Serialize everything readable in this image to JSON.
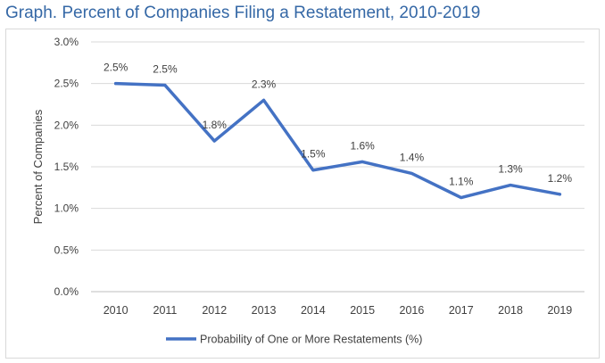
{
  "title": "Graph. Percent of Companies Filing a Restatement, 2010-2019",
  "chart_data": {
    "type": "line",
    "title": "Graph. Percent of Companies Filing a Restatement, 2010-2019",
    "xlabel": "",
    "ylabel": "Percent of Companies",
    "categories": [
      "2010",
      "2011",
      "2012",
      "2013",
      "2014",
      "2015",
      "2016",
      "2017",
      "2018",
      "2019"
    ],
    "series": [
      {
        "name": "Probability of One or More Restatements (%)",
        "values": [
          2.5,
          2.48,
          1.81,
          2.3,
          1.46,
          1.56,
          1.42,
          1.13,
          1.28,
          1.17
        ],
        "data_labels": [
          "2.5%",
          "2.5%",
          "1.8%",
          "2.3%",
          "1.5%",
          "1.6%",
          "1.4%",
          "1.1%",
          "1.3%",
          "1.2%"
        ],
        "color": "#4472c4"
      }
    ],
    "ylim": [
      0,
      3.0
    ],
    "yticks": [
      "0.0%",
      "0.5%",
      "1.0%",
      "1.5%",
      "2.0%",
      "2.5%",
      "3.0%"
    ],
    "ytick_values": [
      0,
      0.5,
      1.0,
      1.5,
      2.0,
      2.5,
      3.0
    ],
    "grid": true,
    "legend_position": "bottom"
  }
}
